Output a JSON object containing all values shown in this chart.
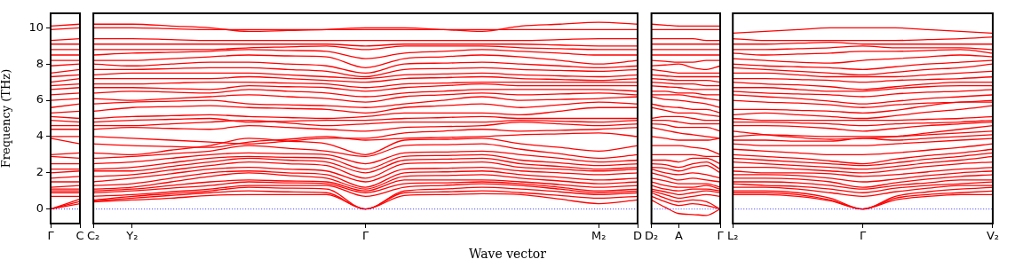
{
  "chart_data": [
    {
      "type": "line",
      "ylabel": "Frequency (THz)",
      "categories": [
        "Γ",
        "C"
      ],
      "ylim": [
        -0.8,
        10.8
      ],
      "yticks": [
        0,
        2,
        4,
        6,
        8,
        10
      ],
      "grid": false,
      "marker": "none",
      "ref_lines": [
        {
          "axis": "y",
          "value": 0,
          "color": "#0000ff",
          "line_style": "dotted"
        }
      ],
      "series": [
        {
          "color": "#ff0000",
          "values": [
            0,
            0.3
          ]
        },
        {
          "color": "#ff0000",
          "values": [
            0,
            0.42
          ]
        },
        {
          "color": "#ff0000",
          "values": [
            0,
            0.55
          ]
        },
        {
          "color": "#ff0000",
          "values": [
            0.7,
            0.7
          ]
        },
        {
          "color": "#ff0000",
          "values": [
            0.9,
            0.9
          ]
        },
        {
          "color": "#ff0000",
          "values": [
            1.0,
            1.0
          ]
        },
        {
          "color": "#ff0000",
          "values": [
            1.1,
            1.1
          ]
        },
        {
          "color": "#ff0000",
          "values": [
            1.2,
            1.3
          ]
        },
        {
          "color": "#ff0000",
          "values": [
            1.5,
            1.5
          ]
        },
        {
          "color": "#ff0000",
          "values": [
            1.7,
            1.8
          ]
        },
        {
          "color": "#ff0000",
          "values": [
            2.0,
            2.1
          ]
        },
        {
          "color": "#ff0000",
          "values": [
            2.2,
            2.2
          ]
        },
        {
          "color": "#ff0000",
          "values": [
            2.5,
            2.5
          ]
        },
        {
          "color": "#ff0000",
          "values": [
            2.9,
            2.8
          ]
        },
        {
          "color": "#ff0000",
          "values": [
            3.0,
            3.1
          ]
        },
        {
          "color": "#ff0000",
          "values": [
            3.9,
            3.6
          ]
        },
        {
          "color": "#ff0000",
          "values": [
            4.0,
            4.0
          ]
        },
        {
          "color": "#ff0000",
          "values": [
            4.4,
            4.4
          ]
        },
        {
          "color": "#ff0000",
          "values": [
            4.6,
            4.6
          ]
        },
        {
          "color": "#ff0000",
          "values": [
            4.9,
            4.8
          ]
        },
        {
          "color": "#ff0000",
          "values": [
            5.1,
            5.0
          ]
        },
        {
          "color": "#ff0000",
          "values": [
            5.3,
            5.4
          ]
        },
        {
          "color": "#ff0000",
          "values": [
            5.6,
            5.8
          ]
        },
        {
          "color": "#ff0000",
          "values": [
            6.0,
            6.1
          ]
        },
        {
          "color": "#ff0000",
          "values": [
            6.3,
            6.4
          ]
        },
        {
          "color": "#ff0000",
          "values": [
            6.6,
            6.7
          ]
        },
        {
          "color": "#ff0000",
          "values": [
            6.8,
            6.9
          ]
        },
        {
          "color": "#ff0000",
          "values": [
            7.0,
            7.2
          ]
        },
        {
          "color": "#ff0000",
          "values": [
            7.3,
            7.4
          ]
        },
        {
          "color": "#ff0000",
          "values": [
            7.5,
            7.7
          ]
        },
        {
          "color": "#ff0000",
          "values": [
            7.9,
            8.0
          ]
        },
        {
          "color": "#ff0000",
          "values": [
            8.2,
            8.2
          ]
        },
        {
          "color": "#ff0000",
          "values": [
            8.5,
            8.5
          ]
        },
        {
          "color": "#ff0000",
          "values": [
            8.8,
            8.8
          ]
        },
        {
          "color": "#ff0000",
          "values": [
            9.1,
            9.1
          ]
        },
        {
          "color": "#ff0000",
          "values": [
            9.3,
            9.4
          ]
        },
        {
          "color": "#ff0000",
          "values": [
            9.9,
            10.0
          ]
        },
        {
          "color": "#ff0000",
          "values": [
            10.1,
            10.2
          ]
        }
      ]
    },
    {
      "type": "line",
      "xlabel": "Wave vector",
      "categories": [
        "C₂",
        "Y₂",
        null,
        null,
        null,
        null,
        null,
        "Γ",
        null,
        null,
        null,
        null,
        null,
        "M₂",
        "D"
      ],
      "ylim": [
        -0.8,
        10.8
      ],
      "yticks": [
        0,
        2,
        4,
        6,
        8,
        10
      ],
      "tick_labels": "x",
      "grid": false,
      "marker": "none",
      "ref_lines": [
        {
          "axis": "y",
          "value": 0,
          "color": "#0000ff",
          "line_style": "dotted"
        }
      ],
      "series": [
        {
          "color": "#ff0000",
          "values": [
            0.4,
            0.5,
            0.6,
            0.75,
            0.8,
            0.8,
            0.8,
            0,
            0.75,
            0.8,
            0.85,
            0.8,
            0.55,
            0.3,
            0.5
          ]
        },
        {
          "color": "#ff0000",
          "values": [
            0.45,
            0.6,
            0.75,
            0.9,
            1.0,
            0.95,
            0.9,
            0,
            0.9,
            0.95,
            1.0,
            0.9,
            0.75,
            0.6,
            0.7
          ]
        },
        {
          "color": "#ff0000",
          "values": [
            0.5,
            0.7,
            0.85,
            1.0,
            1.2,
            1.15,
            1.1,
            0,
            1.0,
            1.1,
            1.2,
            1.1,
            0.95,
            0.8,
            0.9
          ]
        },
        {
          "color": "#ff0000",
          "values": [
            0.7,
            0.8,
            0.95,
            1.1,
            1.3,
            1.3,
            1.3,
            0.7,
            1.2,
            1.3,
            1.4,
            1.3,
            1.1,
            0.9,
            1.0
          ]
        },
        {
          "color": "#ff0000",
          "values": [
            0.9,
            1.0,
            1.15,
            1.3,
            1.5,
            1.45,
            1.4,
            0.9,
            1.4,
            1.45,
            1.5,
            1.4,
            1.2,
            1.0,
            1.1
          ]
        },
        {
          "color": "#ff0000",
          "values": [
            1.0,
            1.1,
            1.3,
            1.5,
            1.6,
            1.55,
            1.5,
            1.0,
            1.6,
            1.6,
            1.6,
            1.5,
            1.35,
            1.2,
            1.3
          ]
        },
        {
          "color": "#ff0000",
          "values": [
            1.1,
            1.2,
            1.5,
            1.8,
            2.0,
            1.85,
            1.7,
            1.1,
            1.8,
            1.85,
            1.9,
            1.7,
            1.55,
            1.4,
            1.5
          ]
        },
        {
          "color": "#ff0000",
          "values": [
            1.3,
            1.4,
            1.7,
            2.0,
            2.1,
            2.0,
            1.9,
            1.2,
            2.0,
            2.05,
            2.1,
            1.9,
            1.75,
            1.6,
            1.7
          ]
        },
        {
          "color": "#ff0000",
          "values": [
            1.5,
            1.7,
            1.95,
            2.2,
            2.3,
            2.2,
            2.1,
            1.5,
            2.2,
            2.25,
            2.3,
            2.1,
            2.0,
            1.9,
            2.0
          ]
        },
        {
          "color": "#ff0000",
          "values": [
            1.8,
            1.9,
            2.15,
            2.4,
            2.6,
            2.5,
            2.4,
            1.7,
            2.5,
            2.55,
            2.6,
            2.3,
            2.2,
            2.1,
            2.2
          ]
        },
        {
          "color": "#ff0000",
          "values": [
            2.1,
            2.1,
            2.35,
            2.6,
            2.8,
            2.7,
            2.6,
            2.0,
            2.7,
            2.75,
            2.8,
            2.5,
            2.35,
            2.2,
            2.3
          ]
        },
        {
          "color": "#ff0000",
          "values": [
            2.2,
            2.3,
            2.55,
            2.8,
            2.9,
            2.85,
            2.8,
            2.2,
            2.9,
            2.95,
            3.0,
            2.7,
            2.55,
            2.4,
            2.5
          ]
        },
        {
          "color": "#ff0000",
          "values": [
            2.5,
            2.6,
            2.8,
            3.0,
            3.1,
            3.05,
            3.0,
            2.5,
            3.1,
            3.15,
            3.2,
            3.0,
            2.8,
            2.6,
            2.7
          ]
        },
        {
          "color": "#ff0000",
          "values": [
            2.8,
            2.9,
            3.05,
            3.2,
            3.5,
            3.35,
            3.2,
            2.9,
            3.5,
            3.55,
            3.6,
            3.3,
            3.05,
            2.8,
            3.0
          ]
        },
        {
          "color": "#ff0000",
          "values": [
            3.1,
            3.0,
            3.25,
            3.5,
            3.9,
            3.75,
            3.6,
            3.0,
            3.8,
            3.85,
            3.9,
            3.6,
            3.4,
            3.2,
            3.5
          ]
        },
        {
          "color": "#ff0000",
          "values": [
            3.6,
            3.5,
            3.45,
            3.4,
            3.7,
            3.85,
            4.0,
            3.8,
            3.9,
            3.95,
            4.0,
            4.1,
            4.15,
            4.2,
            4.0
          ]
        },
        {
          "color": "#ff0000",
          "values": [
            4.0,
            3.9,
            3.8,
            3.7,
            3.6,
            3.75,
            3.9,
            3.9,
            4.2,
            4.3,
            4.4,
            4.3,
            4.35,
            4.4,
            4.5
          ]
        },
        {
          "color": "#ff0000",
          "values": [
            4.4,
            4.5,
            4.45,
            4.4,
            4.6,
            4.5,
            4.4,
            4.3,
            4.5,
            4.55,
            4.6,
            4.8,
            4.7,
            4.6,
            4.7
          ]
        },
        {
          "color": "#ff0000",
          "values": [
            4.6,
            4.6,
            4.7,
            4.8,
            4.9,
            4.75,
            4.6,
            4.7,
            4.8,
            4.8,
            4.8,
            4.9,
            4.85,
            4.8,
            4.9
          ]
        },
        {
          "color": "#ff0000",
          "values": [
            4.8,
            4.9,
            4.95,
            5.0,
            4.8,
            4.85,
            4.9,
            4.9,
            5.0,
            5.05,
            5.1,
            5.0,
            5.0,
            5.0,
            5.0
          ]
        },
        {
          "color": "#ff0000",
          "values": [
            5.0,
            5.1,
            5.15,
            5.2,
            5.1,
            5.05,
            5.0,
            5.1,
            5.3,
            5.3,
            5.3,
            5.2,
            5.4,
            5.6,
            5.6
          ]
        },
        {
          "color": "#ff0000",
          "values": [
            5.4,
            5.6,
            5.65,
            5.7,
            5.6,
            5.55,
            5.5,
            5.3,
            5.6,
            5.7,
            5.8,
            5.6,
            5.75,
            5.9,
            5.8
          ]
        },
        {
          "color": "#ff0000",
          "values": [
            5.8,
            5.9,
            5.95,
            6.0,
            5.8,
            5.75,
            5.7,
            5.6,
            5.8,
            6.0,
            6.2,
            6.0,
            6.05,
            6.1,
            6.2
          ]
        },
        {
          "color": "#ff0000",
          "values": [
            6.1,
            6.0,
            6.1,
            6.2,
            6.3,
            6.2,
            6.1,
            5.9,
            6.2,
            6.3,
            6.4,
            6.3,
            6.35,
            6.4,
            6.3
          ]
        },
        {
          "color": "#ff0000",
          "values": [
            6.4,
            6.5,
            6.45,
            6.4,
            6.6,
            6.5,
            6.4,
            6.2,
            6.4,
            6.5,
            6.6,
            6.6,
            6.6,
            6.6,
            6.5
          ]
        },
        {
          "color": "#ff0000",
          "values": [
            6.7,
            6.7,
            6.65,
            6.6,
            6.8,
            6.75,
            6.7,
            6.5,
            6.7,
            6.8,
            6.9,
            6.8,
            6.8,
            6.8,
            6.8
          ]
        },
        {
          "color": "#ff0000",
          "values": [
            6.9,
            6.9,
            6.95,
            7.0,
            7.0,
            6.95,
            6.9,
            6.7,
            6.9,
            6.95,
            7.0,
            7.0,
            7.0,
            7.0,
            7.0
          ]
        },
        {
          "color": "#ff0000",
          "values": [
            7.2,
            7.2,
            7.2,
            7.2,
            7.3,
            7.2,
            7.1,
            7.0,
            7.2,
            7.25,
            7.3,
            7.2,
            7.15,
            7.1,
            7.2
          ]
        },
        {
          "color": "#ff0000",
          "values": [
            7.4,
            7.5,
            7.5,
            7.5,
            7.5,
            7.4,
            7.3,
            7.2,
            7.4,
            7.45,
            7.5,
            7.4,
            7.35,
            7.3,
            7.4
          ]
        },
        {
          "color": "#ff0000",
          "values": [
            7.7,
            7.7,
            7.75,
            7.8,
            7.8,
            7.7,
            7.6,
            7.3,
            7.7,
            7.75,
            7.8,
            7.7,
            7.65,
            7.6,
            7.7
          ]
        },
        {
          "color": "#ff0000",
          "values": [
            8.0,
            7.9,
            8.0,
            8.1,
            8.1,
            8.0,
            7.9,
            7.5,
            8.0,
            8.05,
            8.1,
            8.0,
            7.9,
            7.8,
            7.9
          ]
        },
        {
          "color": "#ff0000",
          "values": [
            8.2,
            8.2,
            8.3,
            8.4,
            8.5,
            8.45,
            8.4,
            7.8,
            8.3,
            8.4,
            8.5,
            8.4,
            8.2,
            8.0,
            8.2
          ]
        },
        {
          "color": "#ff0000",
          "values": [
            8.5,
            8.6,
            8.65,
            8.7,
            8.8,
            8.75,
            8.7,
            8.3,
            8.6,
            8.7,
            8.8,
            8.7,
            8.6,
            8.5,
            8.5
          ]
        },
        {
          "color": "#ff0000",
          "values": [
            8.8,
            8.8,
            8.8,
            8.8,
            8.9,
            8.95,
            9.0,
            8.8,
            9.0,
            9.0,
            9.0,
            8.9,
            8.85,
            8.8,
            8.8
          ]
        },
        {
          "color": "#ff0000",
          "values": [
            9.1,
            9.1,
            9.1,
            9.1,
            9.1,
            9.1,
            9.1,
            9.0,
            9.1,
            9.1,
            9.1,
            9.1,
            9.05,
            9.0,
            9.0
          ]
        },
        {
          "color": "#ff0000",
          "values": [
            9.4,
            9.4,
            9.35,
            9.3,
            9.3,
            9.3,
            9.3,
            9.3,
            9.3,
            9.3,
            9.3,
            9.3,
            9.35,
            9.4,
            9.4
          ]
        },
        {
          "color": "#ff0000",
          "values": [
            10.0,
            10.0,
            9.95,
            9.9,
            9.9,
            9.9,
            9.9,
            9.9,
            9.9,
            9.9,
            9.9,
            9.9,
            9.9,
            9.9,
            9.9
          ]
        },
        {
          "color": "#ff0000",
          "values": [
            10.2,
            10.2,
            10.1,
            10.0,
            9.8,
            9.85,
            9.9,
            10.0,
            10.0,
            9.9,
            9.8,
            10.1,
            10.2,
            10.3,
            10.2
          ]
        }
      ]
    },
    {
      "type": "line",
      "categories": [
        "D₂",
        null,
        "A",
        null,
        null,
        "Γ"
      ],
      "ylim": [
        -0.8,
        10.8
      ],
      "yticks": [
        0,
        2,
        4,
        6,
        8,
        10
      ],
      "tick_labels": "x",
      "grid": false,
      "marker": "none",
      "ref_lines": [
        {
          "axis": "y",
          "value": 0,
          "color": "#0000ff",
          "line_style": "dotted"
        }
      ],
      "series": [
        {
          "color": "#ff0000",
          "values": [
            0.5,
            0.1,
            -0.25,
            -0.3,
            -0.35,
            0
          ]
        },
        {
          "color": "#ff0000",
          "values": [
            0.7,
            0.4,
            0.2,
            0.3,
            0.2,
            0
          ]
        },
        {
          "color": "#ff0000",
          "values": [
            0.9,
            0.6,
            0.4,
            0.5,
            0.4,
            0
          ]
        },
        {
          "color": "#ff0000",
          "values": [
            1.0,
            0.8,
            0.6,
            0.7,
            0.8,
            0.7
          ]
        },
        {
          "color": "#ff0000",
          "values": [
            1.1,
            0.95,
            0.8,
            0.9,
            1.0,
            0.9
          ]
        },
        {
          "color": "#ff0000",
          "values": [
            1.3,
            1.1,
            1.0,
            1.1,
            1.1,
            1.0
          ]
        },
        {
          "color": "#ff0000",
          "values": [
            1.5,
            1.3,
            1.2,
            1.2,
            1.3,
            1.1
          ]
        },
        {
          "color": "#ff0000",
          "values": [
            1.7,
            1.55,
            1.4,
            1.4,
            1.4,
            1.2
          ]
        },
        {
          "color": "#ff0000",
          "values": [
            2.0,
            1.8,
            1.6,
            1.7,
            1.6,
            1.5
          ]
        },
        {
          "color": "#ff0000",
          "values": [
            2.2,
            2.0,
            1.9,
            2.0,
            1.9,
            1.7
          ]
        },
        {
          "color": "#ff0000",
          "values": [
            2.3,
            2.25,
            2.1,
            2.3,
            2.4,
            2.0
          ]
        },
        {
          "color": "#ff0000",
          "values": [
            2.5,
            2.45,
            2.3,
            2.5,
            2.6,
            2.2
          ]
        },
        {
          "color": "#ff0000",
          "values": [
            2.7,
            2.7,
            2.6,
            2.8,
            2.8,
            2.5
          ]
        },
        {
          "color": "#ff0000",
          "values": [
            3.0,
            3.0,
            3.0,
            3.0,
            2.9,
            2.9
          ]
        },
        {
          "color": "#ff0000",
          "values": [
            3.5,
            3.5,
            3.5,
            3.4,
            3.3,
            3.0
          ]
        },
        {
          "color": "#ff0000",
          "values": [
            4.0,
            3.9,
            3.8,
            3.8,
            3.8,
            3.9
          ]
        },
        {
          "color": "#ff0000",
          "values": [
            4.5,
            4.35,
            4.2,
            4.1,
            4.0,
            3.9
          ]
        },
        {
          "color": "#ff0000",
          "values": [
            4.7,
            4.65,
            4.5,
            4.5,
            4.5,
            4.3
          ]
        },
        {
          "color": "#ff0000",
          "values": [
            4.9,
            4.9,
            4.8,
            4.7,
            4.7,
            4.7
          ]
        },
        {
          "color": "#ff0000",
          "values": [
            5.0,
            5.1,
            5.1,
            5.0,
            4.9,
            4.9
          ]
        },
        {
          "color": "#ff0000",
          "values": [
            5.6,
            5.45,
            5.3,
            5.3,
            5.2,
            5.1
          ]
        },
        {
          "color": "#ff0000",
          "values": [
            5.8,
            5.65,
            5.6,
            5.5,
            5.5,
            5.3
          ]
        },
        {
          "color": "#ff0000",
          "values": [
            6.2,
            6.05,
            6.0,
            5.9,
            5.8,
            5.6
          ]
        },
        {
          "color": "#ff0000",
          "values": [
            6.3,
            6.3,
            6.3,
            6.2,
            6.1,
            6.0
          ]
        },
        {
          "color": "#ff0000",
          "values": [
            6.5,
            6.5,
            6.4,
            6.4,
            6.3,
            6.3
          ]
        },
        {
          "color": "#ff0000",
          "values": [
            6.8,
            6.75,
            6.7,
            6.6,
            6.6,
            6.6
          ]
        },
        {
          "color": "#ff0000",
          "values": [
            7.0,
            6.95,
            6.9,
            6.9,
            6.8,
            6.8
          ]
        },
        {
          "color": "#ff0000",
          "values": [
            7.2,
            7.15,
            7.1,
            7.1,
            7.1,
            7.0
          ]
        },
        {
          "color": "#ff0000",
          "values": [
            7.4,
            7.35,
            7.3,
            7.3,
            7.3,
            7.3
          ]
        },
        {
          "color": "#ff0000",
          "values": [
            7.7,
            7.6,
            7.5,
            7.5,
            7.5,
            7.5
          ]
        },
        {
          "color": "#ff0000",
          "values": [
            7.9,
            7.95,
            8.0,
            7.8,
            7.7,
            7.9
          ]
        },
        {
          "color": "#ff0000",
          "values": [
            8.2,
            8.15,
            8.1,
            8.1,
            8.2,
            8.2
          ]
        },
        {
          "color": "#ff0000",
          "values": [
            8.5,
            8.5,
            8.5,
            8.5,
            8.5,
            8.5
          ]
        },
        {
          "color": "#ff0000",
          "values": [
            8.8,
            8.8,
            8.8,
            8.8,
            8.8,
            8.8
          ]
        },
        {
          "color": "#ff0000",
          "values": [
            9.1,
            9.1,
            9.1,
            9.1,
            9.1,
            9.1
          ]
        },
        {
          "color": "#ff0000",
          "values": [
            9.4,
            9.4,
            9.4,
            9.4,
            9.3,
            9.3
          ]
        },
        {
          "color": "#ff0000",
          "values": [
            9.9,
            9.9,
            9.9,
            9.9,
            9.9,
            9.9
          ]
        },
        {
          "color": "#ff0000",
          "values": [
            10.2,
            10.15,
            10.1,
            10.1,
            10.1,
            10.1
          ]
        }
      ]
    },
    {
      "type": "line",
      "categories": [
        "L₂",
        null,
        null,
        null,
        "Γ",
        null,
        null,
        null,
        "V₂"
      ],
      "ylim": [
        -0.8,
        10.8
      ],
      "yticks": [
        0,
        2,
        4,
        6,
        8,
        10
      ],
      "tick_labels": "x",
      "grid": false,
      "marker": "none",
      "ref_lines": [
        {
          "axis": "y",
          "value": 0,
          "color": "#0000ff",
          "line_style": "dotted"
        }
      ],
      "series": [
        {
          "color": "#ff0000",
          "values": [
            0.8,
            0.8,
            0.7,
            0.45,
            0,
            0.5,
            0.7,
            0.8,
            0.8
          ]
        },
        {
          "color": "#ff0000",
          "values": [
            0.9,
            0.9,
            0.8,
            0.5,
            0,
            0.6,
            0.8,
            0.9,
            1.0
          ]
        },
        {
          "color": "#ff0000",
          "values": [
            1.0,
            1.0,
            0.9,
            0.6,
            0,
            0.7,
            0.95,
            1.1,
            1.2
          ]
        },
        {
          "color": "#ff0000",
          "values": [
            1.2,
            1.2,
            1.1,
            0.9,
            0.7,
            0.95,
            1.15,
            1.3,
            1.3
          ]
        },
        {
          "color": "#ff0000",
          "values": [
            1.4,
            1.3,
            1.25,
            1.1,
            0.9,
            1.15,
            1.3,
            1.4,
            1.5
          ]
        },
        {
          "color": "#ff0000",
          "values": [
            1.5,
            1.5,
            1.45,
            1.3,
            1.1,
            1.3,
            1.45,
            1.6,
            1.6
          ]
        },
        {
          "color": "#ff0000",
          "values": [
            1.7,
            1.7,
            1.65,
            1.5,
            1.2,
            1.45,
            1.65,
            1.8,
            1.9
          ]
        },
        {
          "color": "#ff0000",
          "values": [
            1.9,
            1.9,
            1.85,
            1.7,
            1.5,
            1.65,
            1.85,
            2.0,
            2.1
          ]
        },
        {
          "color": "#ff0000",
          "values": [
            2.1,
            2.0,
            2.0,
            1.95,
            1.8,
            1.9,
            2.05,
            2.2,
            2.3
          ]
        },
        {
          "color": "#ff0000",
          "values": [
            2.3,
            2.3,
            2.2,
            2.1,
            2.0,
            2.15,
            2.35,
            2.5,
            2.6
          ]
        },
        {
          "color": "#ff0000",
          "values": [
            2.6,
            2.5,
            2.4,
            2.3,
            2.2,
            2.35,
            2.55,
            2.7,
            2.9
          ]
        },
        {
          "color": "#ff0000",
          "values": [
            2.8,
            2.7,
            2.6,
            2.5,
            2.4,
            2.55,
            2.75,
            2.9,
            3.1
          ]
        },
        {
          "color": "#ff0000",
          "values": [
            3.0,
            2.9,
            2.8,
            2.65,
            2.5,
            2.75,
            2.95,
            3.1,
            3.3
          ]
        },
        {
          "color": "#ff0000",
          "values": [
            3.3,
            3.2,
            3.1,
            3.0,
            3.0,
            3.1,
            3.25,
            3.4,
            3.6
          ]
        },
        {
          "color": "#ff0000",
          "values": [
            3.6,
            3.5,
            3.5,
            3.5,
            3.5,
            3.6,
            3.7,
            3.8,
            3.9
          ]
        },
        {
          "color": "#ff0000",
          "values": [
            3.8,
            3.8,
            3.75,
            3.75,
            3.9,
            3.8,
            3.9,
            4.0,
            4.1
          ]
        },
        {
          "color": "#ff0000",
          "values": [
            4.0,
            4.1,
            4.05,
            4.0,
            4.0,
            4.0,
            4.1,
            4.2,
            4.3
          ]
        },
        {
          "color": "#ff0000",
          "values": [
            4.3,
            4.1,
            3.95,
            3.85,
            3.9,
            4.0,
            4.2,
            4.4,
            4.6
          ]
        },
        {
          "color": "#ff0000",
          "values": [
            4.6,
            4.6,
            4.55,
            4.45,
            4.3,
            4.45,
            4.6,
            4.7,
            4.8
          ]
        },
        {
          "color": "#ff0000",
          "values": [
            4.8,
            4.8,
            4.75,
            4.7,
            4.6,
            4.7,
            4.75,
            4.8,
            4.9
          ]
        },
        {
          "color": "#ff0000",
          "values": [
            5.0,
            4.9,
            4.9,
            4.9,
            4.9,
            4.9,
            4.95,
            5.0,
            5.1
          ]
        },
        {
          "color": "#ff0000",
          "values": [
            5.2,
            5.3,
            5.2,
            5.1,
            5.0,
            5.15,
            5.35,
            5.5,
            5.7
          ]
        },
        {
          "color": "#ff0000",
          "values": [
            5.5,
            5.5,
            5.45,
            5.4,
            5.3,
            5.45,
            5.7,
            5.9,
            5.9
          ]
        },
        {
          "color": "#ff0000",
          "values": [
            6.0,
            5.9,
            5.85,
            5.75,
            5.6,
            5.75,
            5.85,
            5.9,
            6.0
          ]
        },
        {
          "color": "#ff0000",
          "values": [
            6.3,
            6.2,
            6.1,
            5.95,
            5.8,
            5.95,
            6.1,
            6.2,
            6.3
          ]
        },
        {
          "color": "#ff0000",
          "values": [
            6.5,
            6.4,
            6.35,
            6.3,
            6.2,
            6.35,
            6.45,
            6.5,
            6.6
          ]
        },
        {
          "color": "#ff0000",
          "values": [
            6.7,
            6.7,
            6.6,
            6.5,
            6.5,
            6.65,
            6.75,
            6.8,
            6.8
          ]
        },
        {
          "color": "#ff0000",
          "values": [
            7.0,
            6.9,
            6.85,
            6.75,
            6.6,
            6.75,
            6.9,
            7.0,
            7.0
          ]
        },
        {
          "color": "#ff0000",
          "values": [
            7.2,
            7.2,
            7.15,
            7.1,
            7.0,
            7.1,
            7.15,
            7.2,
            7.3
          ]
        },
        {
          "color": "#ff0000",
          "values": [
            7.5,
            7.5,
            7.4,
            7.3,
            7.3,
            7.3,
            7.4,
            7.5,
            7.6
          ]
        },
        {
          "color": "#ff0000",
          "values": [
            7.8,
            7.7,
            7.6,
            7.5,
            7.4,
            7.55,
            7.7,
            7.8,
            8.0
          ]
        },
        {
          "color": "#ff0000",
          "values": [
            8.0,
            7.9,
            7.85,
            7.8,
            7.7,
            7.85,
            8.0,
            8.1,
            8.2
          ]
        },
        {
          "color": "#ff0000",
          "values": [
            8.3,
            8.2,
            8.1,
            8.05,
            8.2,
            8.3,
            8.4,
            8.5,
            8.4
          ]
        },
        {
          "color": "#ff0000",
          "values": [
            8.6,
            8.5,
            8.55,
            8.6,
            8.7,
            8.7,
            8.75,
            8.8,
            8.6
          ]
        },
        {
          "color": "#ff0000",
          "values": [
            8.8,
            8.8,
            8.85,
            8.9,
            9.0,
            8.9,
            8.9,
            8.9,
            8.8
          ]
        },
        {
          "color": "#ff0000",
          "values": [
            9.1,
            9.1,
            9.15,
            9.2,
            9.1,
            9.1,
            9.1,
            9.1,
            9.1
          ]
        },
        {
          "color": "#ff0000",
          "values": [
            9.4,
            9.3,
            9.3,
            9.3,
            9.3,
            9.3,
            9.35,
            9.4,
            9.5
          ]
        },
        {
          "color": "#ff0000",
          "values": [
            9.7,
            9.8,
            9.9,
            10.0,
            10.0,
            10.0,
            9.9,
            9.8,
            9.7
          ]
        }
      ]
    }
  ]
}
